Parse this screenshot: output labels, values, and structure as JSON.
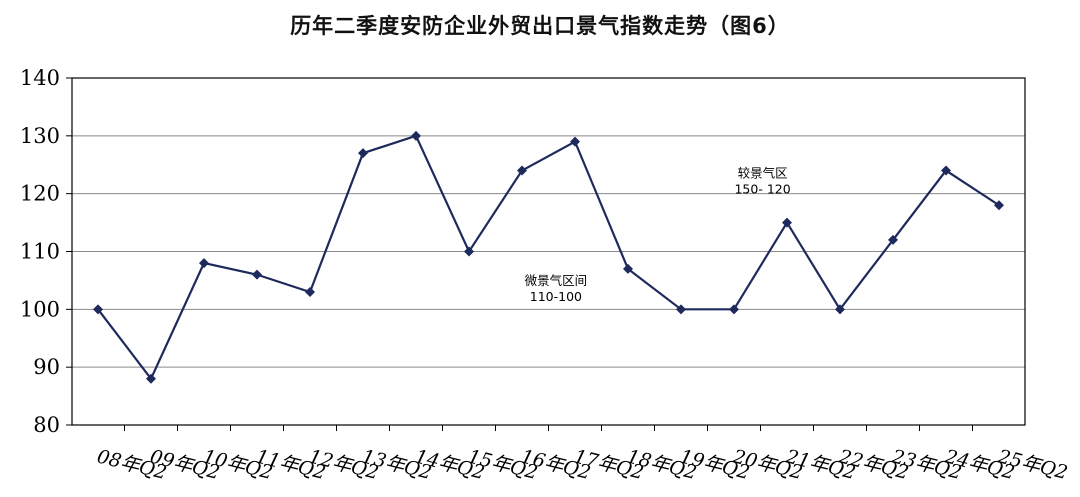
{
  "chart_data": {
    "type": "line",
    "title": "历年二季度安防企业外贸出口景气指数走势（图6）",
    "categories": [
      "08年Q2",
      "09年Q2",
      "10年Q2",
      "11年Q2",
      "12年Q2",
      "13年Q2",
      "14年Q2",
      "15年Q2",
      "16年Q2",
      "17年Q2",
      "18年Q2",
      "19年Q2",
      "20年Q2",
      "21年Q2",
      "22年Q2",
      "23年Q2",
      "24年Q2",
      "25年Q2"
    ],
    "series": [
      {
        "values": [
          100,
          88,
          108,
          106,
          103,
          127,
          130,
          110,
          124,
          129,
          107,
          100,
          100,
          115,
          100,
          112,
          124,
          118
        ]
      }
    ],
    "ylim": [
      80,
      140
    ],
    "yticks": [
      80,
      90,
      100,
      110,
      120,
      130,
      140
    ],
    "grid": true,
    "line_color": "#1f2a5c",
    "grid_color": "#8a8a8a",
    "annotations": [
      {
        "line1": "较景气区",
        "line2": "150- 120",
        "x_index": 12.2,
        "y": 122.8
      },
      {
        "line1": "微景气区间",
        "line2": "110-100",
        "x_index": 8.3,
        "y": 104.2
      }
    ]
  }
}
